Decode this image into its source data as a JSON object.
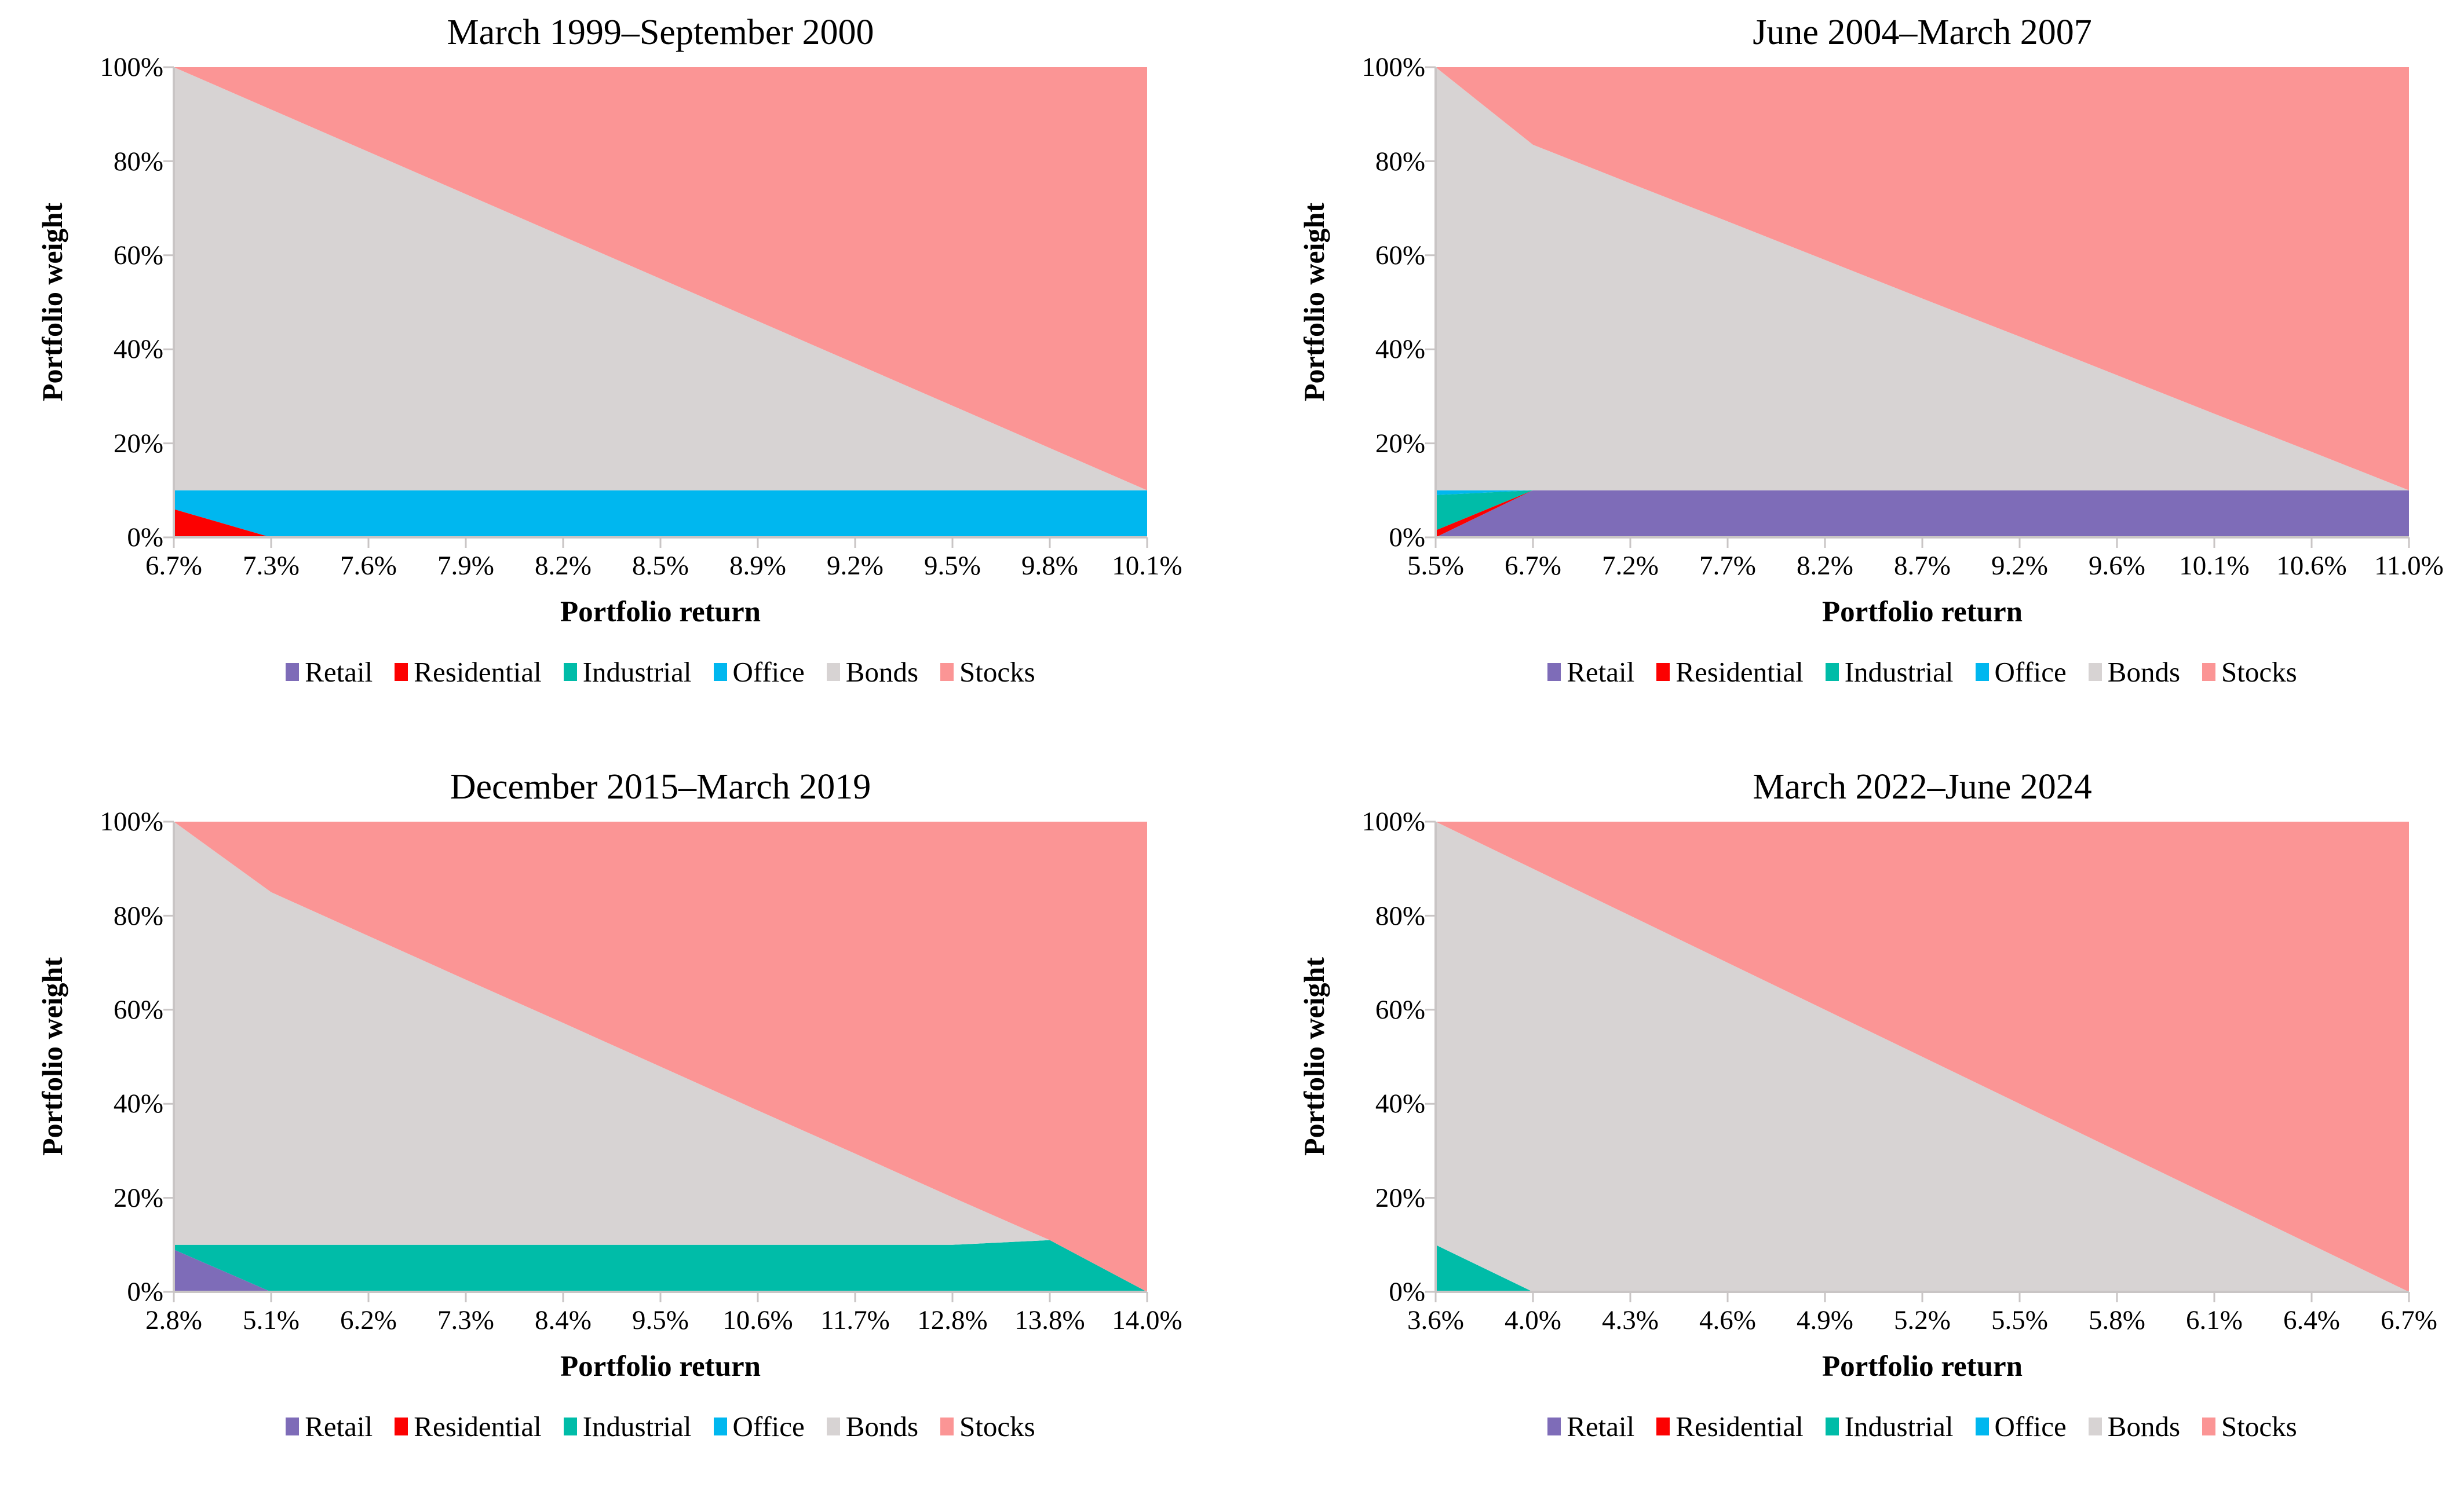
{
  "figure": {
    "y_axis_label": "Portfolio weight",
    "x_axis_label": "Portfolio return",
    "y_ticks": [
      "100%",
      "80%",
      "60%",
      "40%",
      "20%",
      "0%"
    ],
    "axis_color": "#C9C5C5",
    "background": "#FFFFFF"
  },
  "legend": [
    {
      "label": "Retail",
      "color": "#7E6CB8"
    },
    {
      "label": "Residential",
      "color": "#FC0101"
    },
    {
      "label": "Industrial",
      "color": "#00BCA8"
    },
    {
      "label": "Office",
      "color": "#00B7EF"
    },
    {
      "label": "Bonds",
      "color": "#D7D3D3"
    },
    {
      "label": "Stocks",
      "color": "#FB9595"
    }
  ],
  "chart_data": [
    {
      "type": "area",
      "stacked": true,
      "title": "March 1999–September 2000",
      "xlabel": "Portfolio return",
      "ylabel": "Portfolio weight",
      "ylim": [
        0,
        100
      ],
      "grid": false,
      "legend_position": "bottom",
      "categories": [
        "6.7%",
        "7.3%",
        "7.6%",
        "7.9%",
        "8.2%",
        "8.5%",
        "8.9%",
        "9.2%",
        "9.5%",
        "9.8%",
        "10.1%"
      ],
      "series": [
        {
          "name": "Retail",
          "values": [
            0,
            0,
            0,
            0,
            0,
            0,
            0,
            0,
            0,
            0,
            0
          ]
        },
        {
          "name": "Residential",
          "values": [
            6,
            0,
            0,
            0,
            0,
            0,
            0,
            0,
            0,
            0,
            0
          ]
        },
        {
          "name": "Industrial",
          "values": [
            0,
            0,
            0,
            0,
            0,
            0,
            0,
            0,
            0,
            0,
            0
          ]
        },
        {
          "name": "Office",
          "values": [
            4,
            10,
            10,
            10,
            10,
            10,
            10,
            10,
            10,
            10,
            10
          ]
        },
        {
          "name": "Bonds",
          "values": [
            90,
            81,
            72,
            63,
            54,
            45,
            36,
            27,
            18,
            9,
            0
          ]
        },
        {
          "name": "Stocks",
          "values": [
            0,
            9,
            18,
            27,
            36,
            45,
            54,
            63,
            72,
            81,
            90
          ]
        }
      ]
    },
    {
      "type": "area",
      "stacked": true,
      "title": "June 2004–March 2007",
      "xlabel": "Portfolio return",
      "ylabel": "Portfolio weight",
      "ylim": [
        0,
        100
      ],
      "grid": false,
      "legend_position": "bottom",
      "categories": [
        "5.5%",
        "6.7%",
        "7.2%",
        "7.7%",
        "8.2%",
        "8.7%",
        "9.2%",
        "9.6%",
        "10.1%",
        "10.6%",
        "11.0%"
      ],
      "series": [
        {
          "name": "Retail",
          "values": [
            0,
            10,
            10,
            10,
            10,
            10,
            10,
            10,
            10,
            10,
            10
          ]
        },
        {
          "name": "Residential",
          "values": [
            1.5,
            0,
            0,
            0,
            0,
            0,
            0,
            0,
            0,
            0,
            0
          ]
        },
        {
          "name": "Industrial",
          "values": [
            7.5,
            0,
            0,
            0,
            0,
            0,
            0,
            0,
            0,
            0,
            0
          ]
        },
        {
          "name": "Office",
          "values": [
            1,
            0,
            0,
            0,
            0,
            0,
            0,
            0,
            0,
            0,
            0
          ]
        },
        {
          "name": "Bonds",
          "values": [
            90,
            73.5,
            65.3,
            57.2,
            49.0,
            40.8,
            32.7,
            24.5,
            16.3,
            8.2,
            0
          ]
        },
        {
          "name": "Stocks",
          "values": [
            0,
            16.5,
            24.7,
            32.8,
            41.0,
            49.2,
            57.3,
            65.5,
            73.7,
            81.8,
            90
          ]
        }
      ]
    },
    {
      "type": "area",
      "stacked": true,
      "title": "December 2015–March 2019",
      "xlabel": "Portfolio return",
      "ylabel": "Portfolio weight",
      "ylim": [
        0,
        100
      ],
      "grid": false,
      "legend_position": "bottom",
      "categories": [
        "2.8%",
        "5.1%",
        "6.2%",
        "7.3%",
        "8.4%",
        "9.5%",
        "10.6%",
        "11.7%",
        "12.8%",
        "13.8%",
        "14.0%"
      ],
      "series": [
        {
          "name": "Retail",
          "values": [
            9,
            0,
            0,
            0,
            0,
            0,
            0,
            0,
            0,
            0,
            0
          ]
        },
        {
          "name": "Residential",
          "values": [
            0,
            0,
            0,
            0,
            0,
            0,
            0,
            0,
            0,
            0,
            0
          ]
        },
        {
          "name": "Industrial",
          "values": [
            1,
            10,
            10,
            10,
            10,
            10,
            10,
            10,
            10,
            11,
            0
          ]
        },
        {
          "name": "Office",
          "values": [
            0,
            0,
            0,
            0,
            0,
            0,
            0,
            0,
            0,
            0,
            0
          ]
        },
        {
          "name": "Bonds",
          "values": [
            90,
            75,
            65.7,
            56.4,
            47.2,
            37.9,
            28.6,
            19.4,
            10.1,
            0,
            0
          ]
        },
        {
          "name": "Stocks",
          "values": [
            0,
            15,
            24.3,
            33.6,
            42.8,
            52.1,
            61.4,
            70.6,
            79.9,
            89,
            100
          ]
        }
      ]
    },
    {
      "type": "area",
      "stacked": true,
      "title": "March 2022–June 2024",
      "xlabel": "Portfolio return",
      "ylabel": "Portfolio weight",
      "ylim": [
        0,
        100
      ],
      "grid": false,
      "legend_position": "bottom",
      "categories": [
        "3.6%",
        "4.0%",
        "4.3%",
        "4.6%",
        "4.9%",
        "5.2%",
        "5.5%",
        "5.8%",
        "6.1%",
        "6.4%",
        "6.7%"
      ],
      "series": [
        {
          "name": "Retail",
          "values": [
            0,
            0,
            0,
            0,
            0,
            0,
            0,
            0,
            0,
            0,
            0
          ]
        },
        {
          "name": "Residential",
          "values": [
            0,
            0,
            0,
            0,
            0,
            0,
            0,
            0,
            0,
            0,
            0
          ]
        },
        {
          "name": "Industrial",
          "values": [
            10,
            0,
            0,
            0,
            0,
            0,
            0,
            0,
            0,
            0,
            0
          ]
        },
        {
          "name": "Office",
          "values": [
            0,
            0,
            0,
            0,
            0,
            0,
            0,
            0,
            0,
            0,
            0
          ]
        },
        {
          "name": "Bonds",
          "values": [
            90,
            90,
            80,
            70,
            60,
            50,
            40,
            30,
            20,
            10,
            0
          ]
        },
        {
          "name": "Stocks",
          "values": [
            0,
            10,
            20,
            30,
            40,
            50,
            60,
            70,
            80,
            90,
            100
          ]
        }
      ]
    }
  ]
}
